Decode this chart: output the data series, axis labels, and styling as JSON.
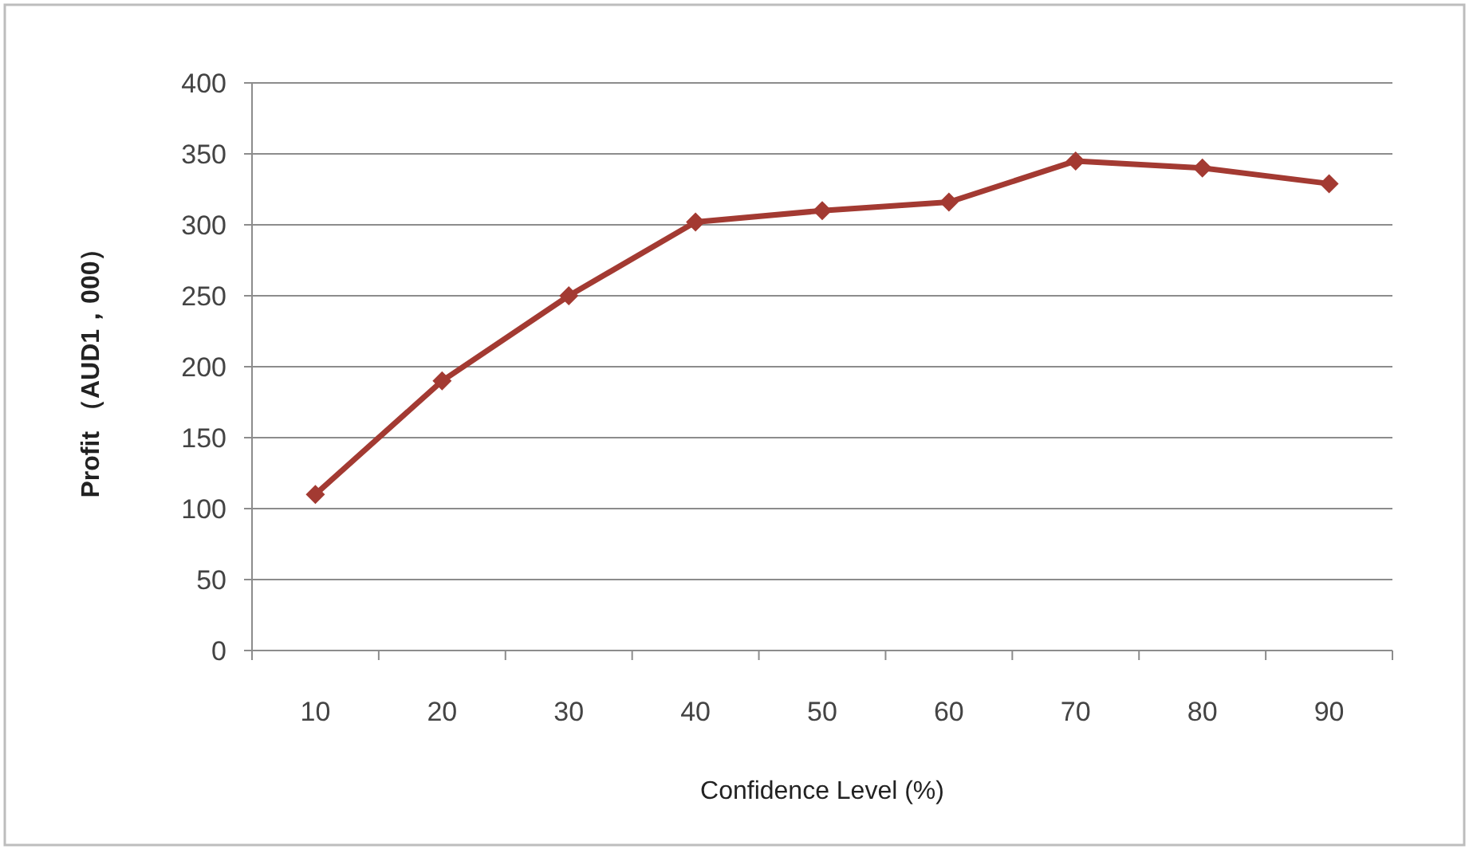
{
  "chart_data": {
    "type": "line",
    "xlabel": "Confidence Level (%)",
    "ylabel": "Profit （AUD1，000）",
    "categories": [
      "10",
      "20",
      "30",
      "40",
      "50",
      "60",
      "70",
      "80",
      "90"
    ],
    "series": [
      {
        "color": "#a33a32",
        "values": [
          110,
          190,
          250,
          302,
          310,
          316,
          345,
          340,
          329
        ]
      }
    ],
    "ylim": [
      0,
      400
    ],
    "yticks": [
      0,
      50,
      100,
      150,
      200,
      250,
      300,
      350,
      400
    ],
    "grid": "y",
    "marker": "diamond",
    "line_style": "solid"
  }
}
